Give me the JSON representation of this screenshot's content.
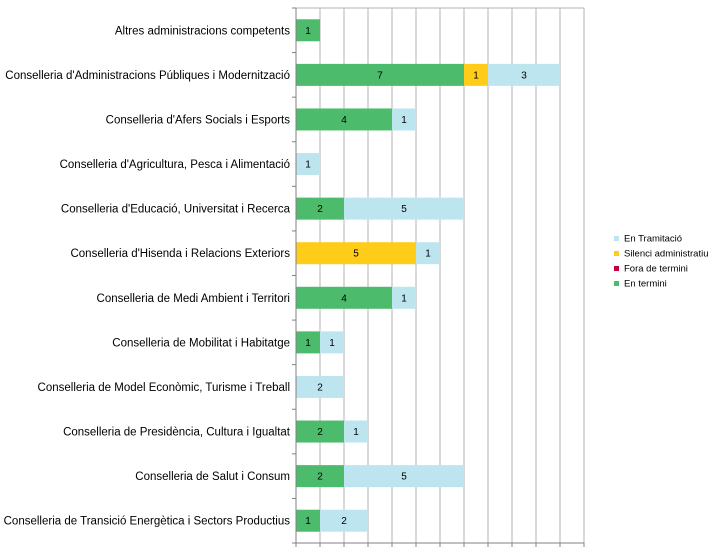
{
  "chart_data": {
    "type": "bar",
    "orientation": "horizontal",
    "stacked": true,
    "categories": [
      "Altres  administracions competents",
      "Conselleria d'Administracions Públiques i Modernització",
      "Conselleria d'Afers Socials i Esports",
      "Conselleria d'Agricultura, Pesca i Alimentació",
      "Conselleria d'Educació, Universitat i Recerca",
      "Conselleria d'Hisenda i Relacions Exteriors",
      "Conselleria de Medi Ambient i Territori",
      "Conselleria de Mobilitat i Habitatge",
      "Conselleria de Model Econòmic, Turisme i Treball",
      "Conselleria de Presidència, Cultura i Igualtat",
      "Conselleria de Salut i Consum",
      "Conselleria de Transició Energètica i Sectors Productius"
    ],
    "series": [
      {
        "name": "En termini",
        "color": "#4cbb6c",
        "values": [
          1,
          7,
          4,
          0,
          2,
          0,
          4,
          1,
          0,
          2,
          2,
          1
        ]
      },
      {
        "name": "Fora de termini",
        "color": "#c00040",
        "values": [
          0,
          0,
          0,
          0,
          0,
          0,
          0,
          0,
          0,
          0,
          0,
          0
        ]
      },
      {
        "name": "Silenci administratiu",
        "color": "#ffcc1a",
        "values": [
          0,
          1,
          0,
          0,
          0,
          5,
          0,
          0,
          0,
          0,
          0,
          0
        ]
      },
      {
        "name": "En Tramitació",
        "color": "#bde5f0",
        "values": [
          0,
          3,
          1,
          1,
          5,
          1,
          1,
          1,
          2,
          1,
          5,
          2
        ]
      }
    ],
    "legend_order": [
      "En Tramitació",
      "Silenci administratiu",
      "Fora de termini",
      "En termini"
    ],
    "xlim": [
      0,
      12
    ],
    "x_gridlines_every": 1,
    "grid": true,
    "legend_position": "right",
    "title": "",
    "xlabel": "",
    "ylabel": ""
  }
}
